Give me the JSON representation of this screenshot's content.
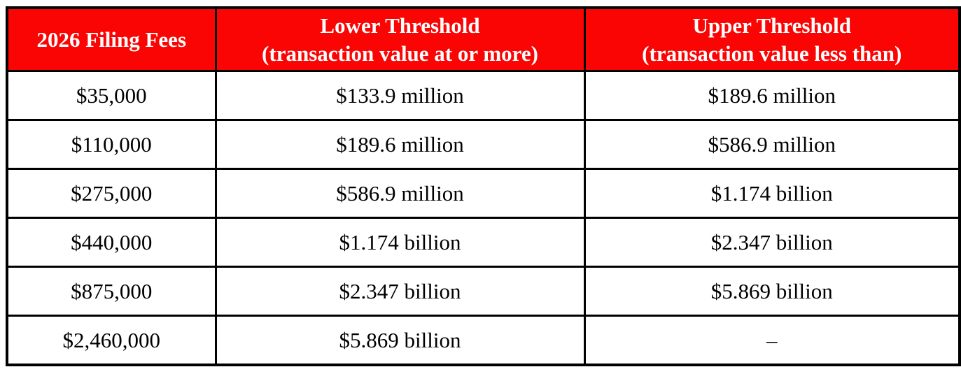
{
  "table": {
    "title": "2026 HSR filing fee schedule table",
    "colors": {
      "header_bg": "#fb0404",
      "header_text": "#ffffff",
      "body_text": "#000000",
      "border": "#000000",
      "page_bg": "#ffffff"
    },
    "header": {
      "fees": "2026 Filing Fees",
      "lower_line1": "Lower Threshold",
      "lower_line2": "(transaction value at or more)",
      "upper_line1": "Upper Threshold",
      "upper_line2": "(transaction value less than)"
    },
    "rows": [
      {
        "fee": "$35,000",
        "lower": "$133.9 million",
        "upper": "$189.6 million"
      },
      {
        "fee": "$110,000",
        "lower": "$189.6 million",
        "upper": "$586.9 million"
      },
      {
        "fee": "$275,000",
        "lower": "$586.9 million",
        "upper": "$1.174 billion"
      },
      {
        "fee": "$440,000",
        "lower": "$1.174 billion",
        "upper": "$2.347 billion"
      },
      {
        "fee": "$875,000",
        "lower": "$2.347 billion",
        "upper": "$5.869 billion"
      },
      {
        "fee": "$2,460,000",
        "lower": "$5.869 billion",
        "upper": "–"
      }
    ]
  }
}
